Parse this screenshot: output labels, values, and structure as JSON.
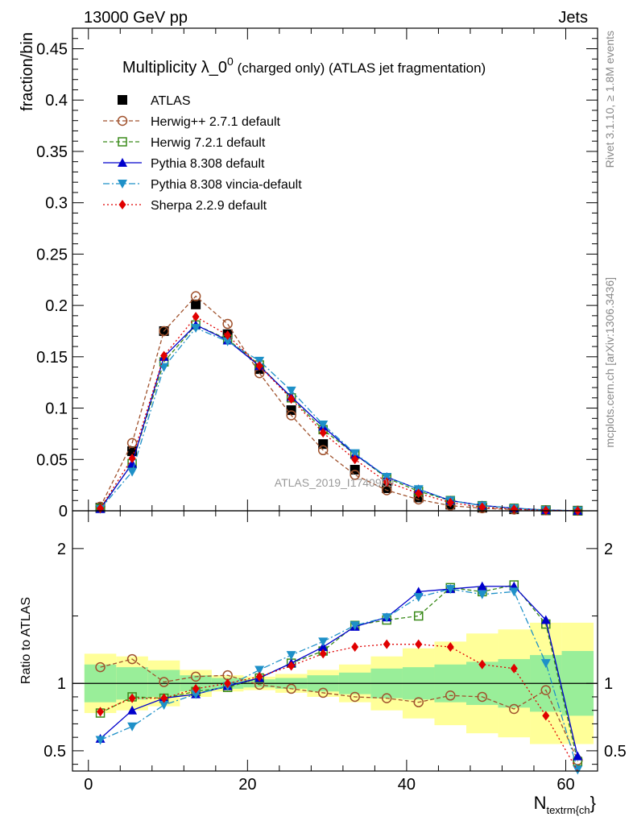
{
  "header": {
    "left": "13000 GeV pp",
    "right": "Jets"
  },
  "side_labels": {
    "top": "Rivet 3.1.10, ≥ 1.8M events",
    "bottom": "mcplots.cern.ch [arXiv:1306.3436]"
  },
  "watermark": "ATLAS_2019_I1740909",
  "colors": {
    "ATLAS": "#000000",
    "Herwig++ 2.7.1 default": "#a0522d",
    "Herwig 7.2.1 default": "#3a8a1a",
    "Pythia 8.308 default": "#0000cc",
    "Pythia 8.308 vincia-default": "#1e90c8",
    "Sherpa 2.2.9 default": "#e00000",
    "band_inner": "#99ee99",
    "band_outer": "#ffff99"
  },
  "chart_data": [
    {
      "type": "line",
      "title_main": "Multiplicity λ_0",
      "title_sup": "0",
      "title_rest": " (charged only) (ATLAS jet fragmentation)",
      "ylabel": "fraction/bin",
      "ylim": [
        0,
        0.47
      ],
      "yticks": [
        0,
        0.05,
        0.1,
        0.15,
        0.2,
        0.25,
        0.3,
        0.35,
        0.4,
        0.45
      ],
      "ytick_labels": [
        "0",
        "0.05",
        "0.1",
        "0.15",
        "0.2",
        "0.25",
        "0.3",
        "0.35",
        "0.4",
        "0.45"
      ],
      "xlim": [
        -2,
        64
      ],
      "x": [
        1.5,
        5.5,
        9.5,
        13.5,
        17.5,
        21.5,
        25.5,
        29.5,
        33.5,
        37.5,
        41.5,
        45.5,
        49.5,
        53.5,
        57.5,
        61.5
      ],
      "legend_position": "top-left",
      "series": [
        {
          "name": "ATLAS",
          "values": [
            0.003,
            0.058,
            0.175,
            0.201,
            0.172,
            0.138,
            0.098,
            0.065,
            0.04,
            0.022,
            0.013,
            0.006,
            0.003,
            0.0015,
            0.0005,
            0.0001
          ]
        },
        {
          "name": "Herwig++ 2.7.1 default",
          "values": [
            0.004,
            0.066,
            0.175,
            0.209,
            0.182,
            0.134,
            0.093,
            0.059,
            0.035,
            0.02,
            0.011,
            0.005,
            0.0025,
            0.0012,
            0.0005,
            0.0001
          ]
        },
        {
          "name": "Herwig 7.2.1 default",
          "values": [
            0.0025,
            0.046,
            0.145,
            0.181,
            0.167,
            0.142,
            0.11,
            0.079,
            0.055,
            0.032,
            0.019,
            0.01,
            0.005,
            0.0025,
            0.0008,
            0.0001
          ]
        },
        {
          "name": "Pythia 8.308 default",
          "values": [
            0.0018,
            0.046,
            0.15,
            0.181,
            0.166,
            0.141,
            0.111,
            0.082,
            0.055,
            0.033,
            0.021,
            0.01,
            0.0052,
            0.0025,
            0.0007,
            0.0001
          ]
        },
        {
          "name": "Pythia 8.308 vincia-default",
          "values": [
            0.0018,
            0.038,
            0.14,
            0.178,
            0.165,
            0.146,
            0.117,
            0.084,
            0.056,
            0.033,
            0.021,
            0.01,
            0.005,
            0.0025,
            0.0006,
            0.0001
          ]
        },
        {
          "name": "Sherpa 2.2.9 default",
          "values": [
            0.0024,
            0.051,
            0.151,
            0.189,
            0.171,
            0.141,
            0.109,
            0.076,
            0.05,
            0.028,
            0.017,
            0.008,
            0.0035,
            0.0016,
            0.0004,
            3e-05
          ]
        }
      ]
    },
    {
      "type": "line",
      "ylabel": "Ratio to ATLAS",
      "xlabel_main": "N",
      "xlabel_sub": "textrm{ch",
      "xlabel_tail": "}",
      "ylim": [
        0.35,
        2.28
      ],
      "yticks": [
        0.5,
        1,
        2
      ],
      "ytick_labels": [
        "0.5",
        "1",
        "2"
      ],
      "xlim": [
        -2,
        64
      ],
      "xticks": [
        0,
        20,
        40,
        60
      ],
      "xtick_labels": [
        "0",
        "20",
        "40",
        "60"
      ],
      "x": [
        1.5,
        5.5,
        9.5,
        13.5,
        17.5,
        21.5,
        25.5,
        29.5,
        33.5,
        37.5,
        41.5,
        45.5,
        49.5,
        53.5,
        57.5,
        61.5
      ],
      "bands": {
        "inner": [
          0.14,
          0.12,
          0.1,
          0.06,
          0.04,
          0.03,
          0.04,
          0.06,
          0.08,
          0.11,
          0.12,
          0.14,
          0.16,
          0.18,
          0.21,
          0.24
        ],
        "outer": [
          0.22,
          0.2,
          0.17,
          0.1,
          0.06,
          0.05,
          0.07,
          0.1,
          0.14,
          0.2,
          0.26,
          0.31,
          0.37,
          0.4,
          0.45,
          0.45
        ]
      },
      "series": [
        {
          "name": "Herwig++ 2.7.1 default",
          "values": [
            1.12,
            1.18,
            1.01,
            1.05,
            1.06,
            0.99,
            0.96,
            0.93,
            0.9,
            0.89,
            0.86,
            0.91,
            0.9,
            0.81,
            0.95,
            0.43
          ]
        },
        {
          "name": "Herwig 7.2.1 default",
          "values": [
            0.78,
            0.9,
            0.89,
            0.94,
            0.97,
            1.04,
            1.15,
            1.24,
            1.43,
            1.47,
            1.5,
            1.71,
            1.68,
            1.73,
            1.44,
            0.42
          ]
        },
        {
          "name": "Pythia 8.308 default",
          "values": [
            0.59,
            0.8,
            0.89,
            0.92,
            0.98,
            1.04,
            1.15,
            1.27,
            1.42,
            1.49,
            1.68,
            1.7,
            1.72,
            1.72,
            1.47,
            0.46
          ]
        },
        {
          "name": "Pythia 8.308 vincia-default",
          "values": [
            0.58,
            0.68,
            0.84,
            0.92,
            0.98,
            1.1,
            1.21,
            1.31,
            1.43,
            1.49,
            1.64,
            1.7,
            1.66,
            1.68,
            1.15,
            0.36
          ]
        },
        {
          "name": "Sherpa 2.2.9 default",
          "values": [
            0.79,
            0.89,
            0.89,
            0.96,
            1.0,
            1.05,
            1.13,
            1.22,
            1.27,
            1.29,
            1.29,
            1.27,
            1.14,
            1.11,
            0.76,
            0.3
          ]
        }
      ]
    }
  ]
}
